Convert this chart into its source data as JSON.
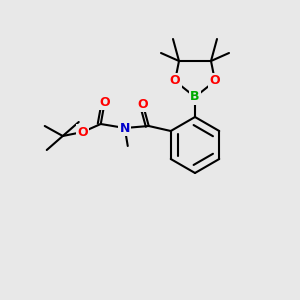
{
  "background_color": "#e8e8e8",
  "atom_colors": {
    "C": "#000000",
    "O": "#ff0000",
    "N": "#0000cc",
    "B": "#00aa00"
  },
  "figsize": [
    3.0,
    3.0
  ],
  "dpi": 100
}
